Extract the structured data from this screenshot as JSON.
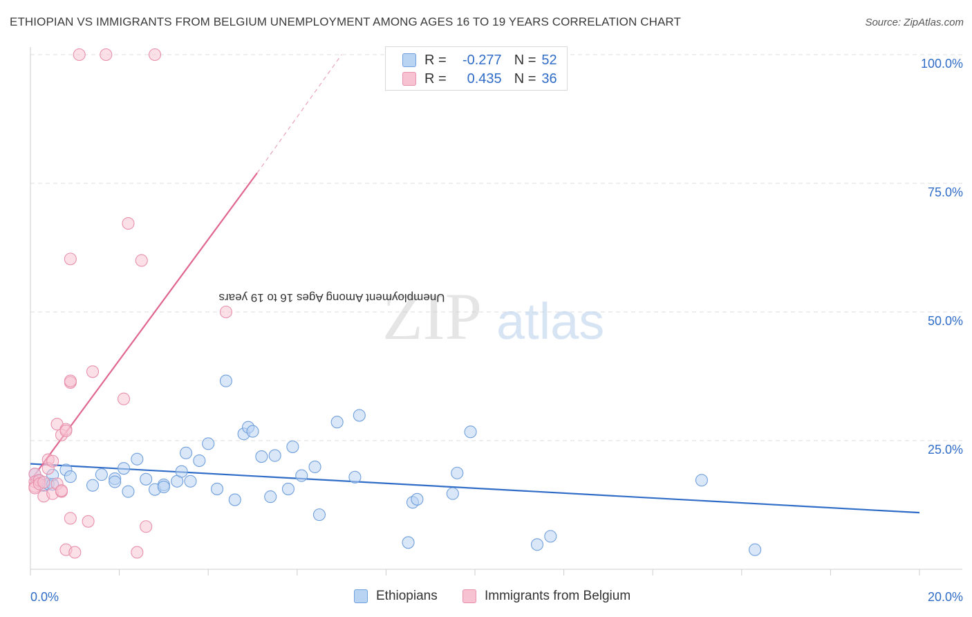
{
  "title": "ETHIOPIAN VS IMMIGRANTS FROM BELGIUM UNEMPLOYMENT AMONG AGES 16 TO 19 YEARS CORRELATION CHART",
  "source": "Source: ZipAtlas.com",
  "watermark": {
    "zip": "ZIP",
    "atlas": "atlas"
  },
  "legend": {
    "r_label": "R =",
    "n_label": "N =",
    "rows": [
      {
        "series": "Ethiopians",
        "r": "-0.277",
        "n": "52"
      },
      {
        "series": "Immigrants from Belgium",
        "r": "0.435",
        "n": "36"
      }
    ]
  },
  "colors": {
    "ethiopians_fill": "#b9d3f3",
    "ethiopians_stroke": "#6f9fdc",
    "ethiopians_line": "#2f6cc7",
    "belgium_fill": "#f7c2d2",
    "belgium_stroke": "#e88fab",
    "belgium_line": "#e06690",
    "axis_text": "#2f6cc7",
    "grid": "#dddddd"
  },
  "chart_data": {
    "type": "scatter",
    "title": "ETHIOPIAN VS IMMIGRANTS FROM BELGIUM UNEMPLOYMENT AMONG AGES 16 TO 19 YEARS CORRELATION CHART",
    "xlabel": "",
    "ylabel": "Unemployment Among Ages 16 to 19 years",
    "xlim": [
      0,
      20
    ],
    "ylim": [
      0,
      100
    ],
    "x_tick_labels": [
      "0.0%",
      "20.0%"
    ],
    "y_tick_labels": [
      "25.0%",
      "50.0%",
      "75.0%",
      "100.0%"
    ],
    "y_ticks": [
      25,
      50,
      75,
      100
    ],
    "grid": true,
    "legend_position": "bottom",
    "series": [
      {
        "name": "Ethiopians",
        "r": -0.277,
        "n": 52,
        "trend": {
          "x": [
            0,
            20
          ],
          "y": [
            20.5,
            11.0
          ]
        },
        "points": [
          [
            0.1,
            18.5
          ],
          [
            0.2,
            17.2
          ],
          [
            0.3,
            16.3
          ],
          [
            0.4,
            16.6
          ],
          [
            0.5,
            18.3
          ],
          [
            0.5,
            16.5
          ],
          [
            0.8,
            19.3
          ],
          [
            0.9,
            18.0
          ],
          [
            1.4,
            16.3
          ],
          [
            1.6,
            18.4
          ],
          [
            1.9,
            17.6
          ],
          [
            1.9,
            17.0
          ],
          [
            2.1,
            19.6
          ],
          [
            2.2,
            15.1
          ],
          [
            2.4,
            21.4
          ],
          [
            2.6,
            17.5
          ],
          [
            2.8,
            15.5
          ],
          [
            3.0,
            16.4
          ],
          [
            3.0,
            16.0
          ],
          [
            3.3,
            17.1
          ],
          [
            3.4,
            19.0
          ],
          [
            3.5,
            22.6
          ],
          [
            3.6,
            17.1
          ],
          [
            3.8,
            21.1
          ],
          [
            4.0,
            24.4
          ],
          [
            4.2,
            15.6
          ],
          [
            4.4,
            36.6
          ],
          [
            4.6,
            13.5
          ],
          [
            4.8,
            26.3
          ],
          [
            4.9,
            27.6
          ],
          [
            5.0,
            26.8
          ],
          [
            5.2,
            21.9
          ],
          [
            5.4,
            14.1
          ],
          [
            5.5,
            22.1
          ],
          [
            5.8,
            15.6
          ],
          [
            5.9,
            23.8
          ],
          [
            6.1,
            18.2
          ],
          [
            6.4,
            19.9
          ],
          [
            6.5,
            10.6
          ],
          [
            6.9,
            28.6
          ],
          [
            7.3,
            17.9
          ],
          [
            7.4,
            29.9
          ],
          [
            8.5,
            5.2
          ],
          [
            8.6,
            13.0
          ],
          [
            8.7,
            13.6
          ],
          [
            9.5,
            14.7
          ],
          [
            9.6,
            18.7
          ],
          [
            9.9,
            26.7
          ],
          [
            11.4,
            4.8
          ],
          [
            11.7,
            6.4
          ],
          [
            15.1,
            17.3
          ],
          [
            16.3,
            3.8
          ]
        ]
      },
      {
        "name": "Immigrants from Belgium",
        "r": 0.435,
        "n": 36,
        "trend": {
          "x": [
            0,
            5.1
          ],
          "y": [
            17.2,
            77.0
          ],
          "dashed_to": {
            "x": 7.0,
            "y": 100
          }
        },
        "points": [
          [
            0.1,
            18.5
          ],
          [
            0.1,
            17.0
          ],
          [
            0.1,
            16.1
          ],
          [
            0.1,
            15.8
          ],
          [
            0.2,
            17.3
          ],
          [
            0.2,
            16.6
          ],
          [
            0.3,
            16.9
          ],
          [
            0.3,
            14.2
          ],
          [
            0.4,
            21.3
          ],
          [
            0.4,
            19.6
          ],
          [
            0.5,
            14.7
          ],
          [
            0.5,
            21.0
          ],
          [
            0.6,
            28.2
          ],
          [
            0.6,
            16.6
          ],
          [
            0.7,
            26.1
          ],
          [
            0.7,
            15.1
          ],
          [
            0.7,
            15.3
          ],
          [
            0.8,
            27.2
          ],
          [
            0.8,
            3.8
          ],
          [
            0.8,
            26.9
          ],
          [
            0.9,
            36.3
          ],
          [
            0.9,
            36.6
          ],
          [
            0.9,
            9.9
          ],
          [
            0.9,
            60.3
          ],
          [
            1.0,
            3.3
          ],
          [
            1.1,
            100.0
          ],
          [
            1.3,
            9.3
          ],
          [
            1.4,
            38.4
          ],
          [
            1.7,
            100.0
          ],
          [
            2.1,
            33.1
          ],
          [
            2.2,
            67.2
          ],
          [
            2.4,
            3.3
          ],
          [
            2.5,
            60.0
          ],
          [
            2.6,
            8.3
          ],
          [
            2.8,
            100.0
          ],
          [
            4.4,
            50.0
          ]
        ]
      }
    ]
  }
}
